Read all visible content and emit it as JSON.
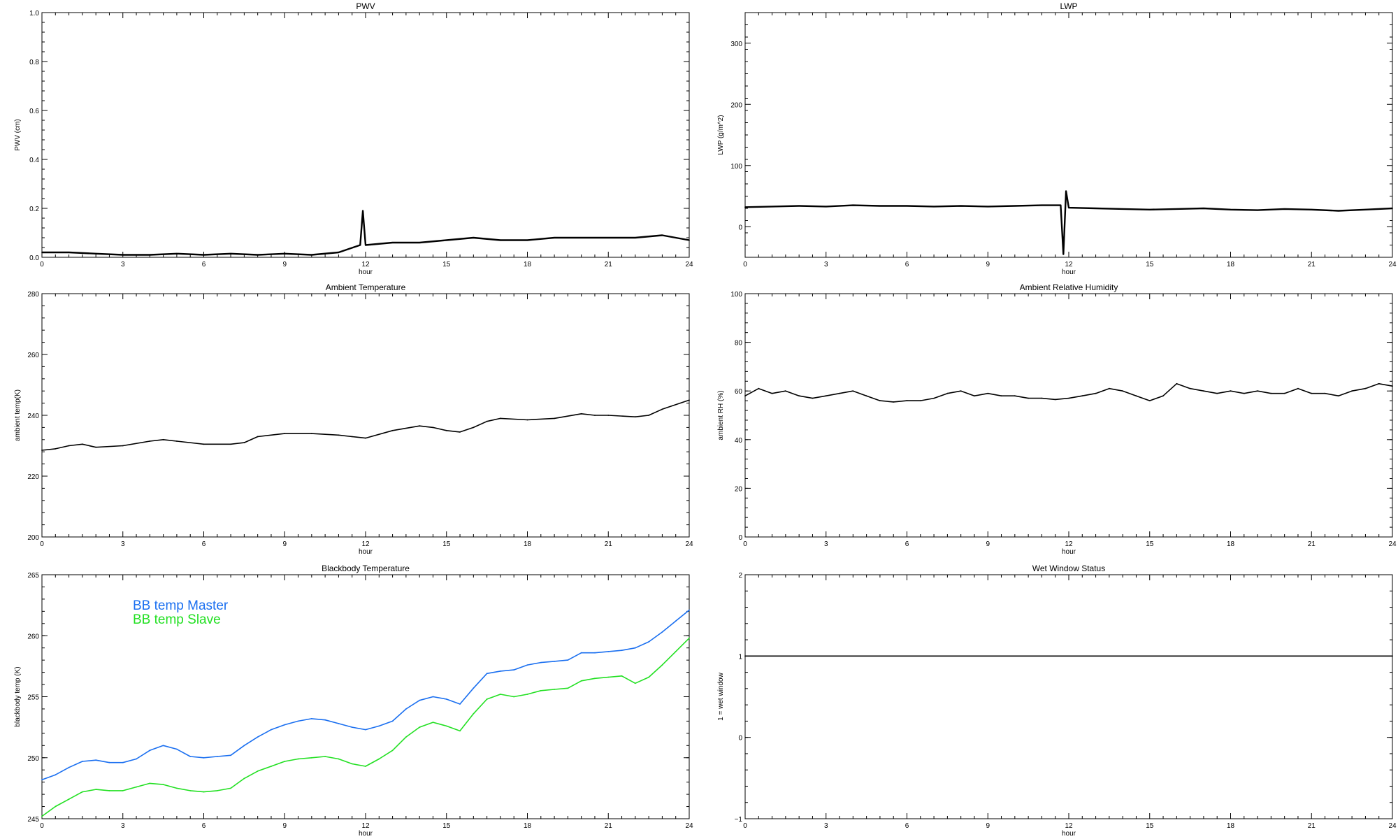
{
  "chart_data": [
    {
      "type": "line",
      "title": "PWV",
      "xlabel": "hour",
      "ylabel": "PWV (cm)",
      "xlim": [
        0,
        24
      ],
      "ylim": [
        0,
        1.0
      ],
      "xticks": [
        0,
        3,
        6,
        9,
        12,
        15,
        18,
        21,
        24
      ],
      "yticks": [
        "0.0",
        "0.2",
        "0.4",
        "0.6",
        "0.8",
        "1.0"
      ],
      "series": [
        {
          "color": "#000000",
          "x": [
            0,
            1,
            2,
            3,
            4,
            5,
            6,
            7,
            8,
            9,
            10,
            11,
            11.8,
            11.9,
            12,
            13,
            14,
            15,
            16,
            17,
            18,
            19,
            20,
            21,
            22,
            23,
            24
          ],
          "y": [
            0.02,
            0.02,
            0.015,
            0.01,
            0.01,
            0.015,
            0.01,
            0.015,
            0.01,
            0.015,
            0.01,
            0.02,
            0.05,
            0.19,
            0.05,
            0.06,
            0.06,
            0.07,
            0.08,
            0.07,
            0.07,
            0.08,
            0.08,
            0.08,
            0.08,
            0.09,
            0.07
          ]
        }
      ]
    },
    {
      "type": "line",
      "title": "LWP",
      "xlabel": "hour",
      "ylabel": "LWP (g/m^2)",
      "xlim": [
        0,
        24
      ],
      "ylim": [
        -50,
        350
      ],
      "xticks": [
        0,
        3,
        6,
        9,
        12,
        15,
        18,
        21,
        24
      ],
      "yticks": [
        "0",
        "100",
        "200",
        "300"
      ],
      "series": [
        {
          "color": "#000000",
          "x": [
            0,
            1,
            2,
            3,
            4,
            5,
            6,
            7,
            8,
            9,
            10,
            11,
            11.7,
            11.8,
            11.9,
            12,
            13,
            14,
            15,
            16,
            17,
            18,
            19,
            20,
            21,
            22,
            23,
            24
          ],
          "y": [
            32,
            33,
            34,
            33,
            35,
            34,
            34,
            33,
            34,
            33,
            34,
            35,
            35,
            -45,
            58,
            31,
            30,
            29,
            28,
            29,
            30,
            28,
            27,
            29,
            28,
            26,
            28,
            30
          ]
        }
      ]
    },
    {
      "type": "line",
      "title": "Ambient Temperature",
      "xlabel": "hour",
      "ylabel": "ambient temp(K)",
      "xlim": [
        0,
        24
      ],
      "ylim": [
        200,
        280
      ],
      "xticks": [
        0,
        3,
        6,
        9,
        12,
        15,
        18,
        21,
        24
      ],
      "yticks": [
        "200",
        "220",
        "240",
        "260",
        "280"
      ],
      "series": [
        {
          "color": "#000000",
          "x": [
            0,
            0.5,
            1,
            1.5,
            2,
            3,
            4,
            4.5,
            5,
            6,
            7,
            7.5,
            8,
            9,
            10,
            11,
            11.5,
            12,
            13,
            14,
            14.5,
            15,
            15.5,
            16,
            16.5,
            17,
            18,
            19,
            20,
            20.5,
            21,
            22,
            22.5,
            23,
            24
          ],
          "y": [
            228.5,
            229,
            230,
            230.5,
            229.5,
            230,
            231.5,
            232,
            231.5,
            230.5,
            230.5,
            231,
            233,
            234,
            234,
            233.5,
            233,
            232.5,
            235,
            236.5,
            236,
            235,
            234.5,
            236,
            238,
            239,
            238.5,
            239,
            240.5,
            240,
            240,
            239.5,
            240,
            242,
            245
          ]
        }
      ]
    },
    {
      "type": "line",
      "title": "Ambient Relative Humidity",
      "xlabel": "hour",
      "ylabel": "ambient RH (%)",
      "xlim": [
        0,
        24
      ],
      "ylim": [
        0,
        100
      ],
      "xticks": [
        0,
        3,
        6,
        9,
        12,
        15,
        18,
        21,
        24
      ],
      "yticks": [
        "0",
        "20",
        "40",
        "60",
        "80",
        "100"
      ],
      "series": [
        {
          "color": "#000000",
          "x": [
            0,
            0.5,
            1,
            1.5,
            2,
            2.5,
            3,
            3.5,
            4,
            4.5,
            5,
            5.5,
            6,
            6.5,
            7,
            7.5,
            8,
            8.5,
            9,
            9.5,
            10,
            10.5,
            11,
            11.5,
            12,
            12.5,
            13,
            13.5,
            14,
            14.5,
            15,
            15.5,
            16,
            16.5,
            17,
            17.5,
            18,
            18.5,
            19,
            19.5,
            20,
            20.5,
            21,
            21.5,
            22,
            22.5,
            23,
            23.5,
            24
          ],
          "y": [
            58,
            61,
            59,
            60,
            58,
            57,
            58,
            59,
            60,
            58,
            56,
            55.5,
            56,
            56,
            57,
            59,
            60,
            58,
            59,
            58,
            58,
            57,
            57,
            56.5,
            57,
            58,
            59,
            61,
            60,
            58,
            56,
            58,
            63,
            61,
            60,
            59,
            60,
            59,
            60,
            59,
            59,
            61,
            59,
            59,
            58,
            60,
            61,
            63,
            62
          ]
        }
      ]
    },
    {
      "type": "line",
      "title": "Blackbody Temperature",
      "xlabel": "hour",
      "ylabel": "blackbody temp (K)",
      "xlim": [
        0,
        24
      ],
      "ylim": [
        245,
        265
      ],
      "xticks": [
        0,
        3,
        6,
        9,
        12,
        15,
        18,
        21,
        24
      ],
      "yticks": [
        "245",
        "250",
        "255",
        "260",
        "265"
      ],
      "legend": [
        "BB temp Master",
        "BB temp Slave"
      ],
      "series": [
        {
          "name": "BB temp Master",
          "color": "#1a6ff0",
          "x": [
            0,
            0.5,
            1,
            1.5,
            2,
            2.5,
            3,
            3.5,
            4,
            4.5,
            5,
            5.5,
            6,
            6.5,
            7,
            7.5,
            8,
            8.5,
            9,
            9.5,
            10,
            10.5,
            11,
            11.5,
            12,
            12.5,
            13,
            13.5,
            14,
            14.5,
            15,
            15.5,
            16,
            16.5,
            17,
            17.5,
            18,
            18.5,
            19,
            19.5,
            20,
            20.5,
            21,
            21.5,
            22,
            22.5,
            23,
            23.5,
            24
          ],
          "y": [
            248.2,
            248.6,
            249.2,
            249.7,
            249.8,
            249.6,
            249.6,
            249.9,
            250.6,
            251.0,
            250.7,
            250.1,
            250.0,
            250.1,
            250.2,
            251.0,
            251.7,
            252.3,
            252.7,
            253.0,
            253.2,
            253.1,
            252.8,
            252.5,
            252.3,
            252.6,
            253.0,
            254.0,
            254.7,
            255.0,
            254.8,
            254.4,
            255.7,
            256.9,
            257.1,
            257.2,
            257.6,
            257.8,
            257.9,
            258.0,
            258.6,
            258.6,
            258.7,
            258.8,
            259.0,
            259.5,
            260.3,
            261.2,
            262.1
          ]
        },
        {
          "name": "BB temp Slave",
          "color": "#22e022",
          "x": [
            0,
            0.5,
            1,
            1.5,
            2,
            2.5,
            3,
            3.5,
            4,
            4.5,
            5,
            5.5,
            6,
            6.5,
            7,
            7.5,
            8,
            8.5,
            9,
            9.5,
            10,
            10.5,
            11,
            11.5,
            12,
            12.5,
            13,
            13.5,
            14,
            14.5,
            15,
            15.5,
            16,
            16.5,
            17,
            17.5,
            18,
            18.5,
            19,
            19.5,
            20,
            20.5,
            21,
            21.5,
            22,
            22.5,
            23,
            23.5,
            24
          ],
          "y": [
            245.2,
            246.0,
            246.6,
            247.2,
            247.4,
            247.3,
            247.3,
            247.6,
            247.9,
            247.8,
            247.5,
            247.3,
            247.2,
            247.3,
            247.5,
            248.3,
            248.9,
            249.3,
            249.7,
            249.9,
            250.0,
            250.1,
            249.9,
            249.5,
            249.3,
            249.9,
            250.6,
            251.7,
            252.5,
            252.9,
            252.6,
            252.2,
            253.6,
            254.8,
            255.2,
            255.0,
            255.2,
            255.5,
            255.6,
            255.7,
            256.3,
            256.5,
            256.6,
            256.7,
            256.1,
            256.6,
            257.6,
            258.7,
            259.8
          ]
        }
      ]
    },
    {
      "type": "line",
      "title": "Wet Window Status",
      "xlabel": "hour",
      "ylabel": "1 = wet window",
      "xlim": [
        0,
        24
      ],
      "ylim": [
        -1,
        2
      ],
      "xticks": [
        0,
        3,
        6,
        9,
        12,
        15,
        18,
        21,
        24
      ],
      "yticks": [
        "−1",
        "0",
        "1",
        "2"
      ],
      "series": [
        {
          "color": "#000000",
          "x": [
            0,
            24
          ],
          "y": [
            1,
            1
          ]
        }
      ]
    }
  ]
}
